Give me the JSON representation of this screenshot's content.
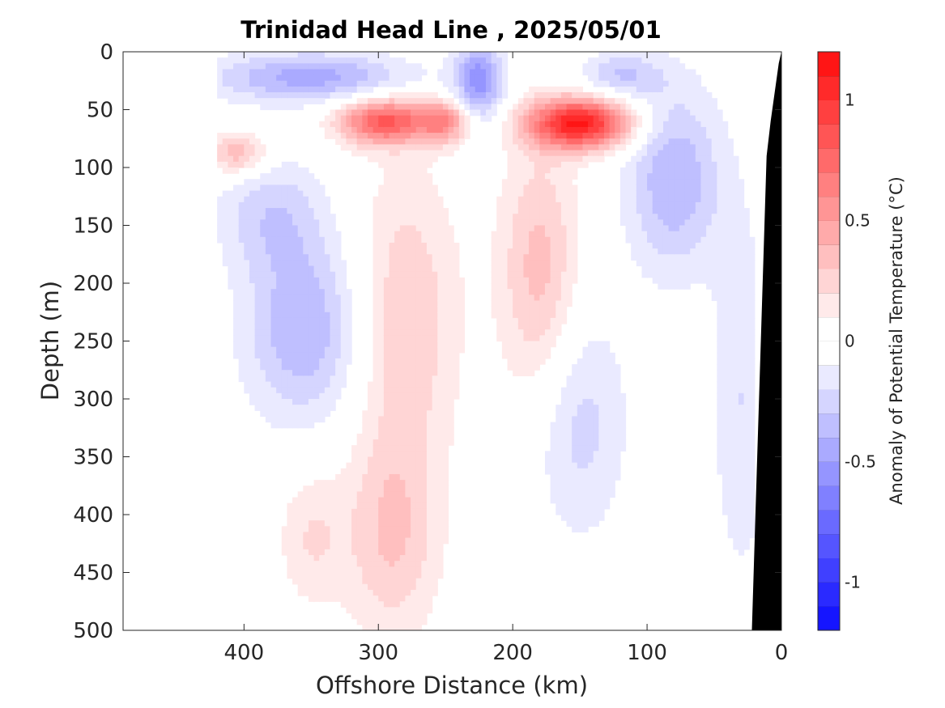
{
  "chart_data": {
    "type": "heatmap",
    "title": "Trinidad Head Line , 2025/05/01",
    "xlabel": "Offshore Distance (km)",
    "ylabel": "Depth (m)",
    "xlim": [
      490,
      0
    ],
    "ylim": [
      0,
      500
    ],
    "x_ticks": [
      "400",
      "300",
      "200",
      "100",
      "0"
    ],
    "y_ticks": [
      "0",
      "50",
      "100",
      "150",
      "200",
      "250",
      "300",
      "350",
      "400",
      "450",
      "500"
    ],
    "colorbar": {
      "label": "Anomaly of Potential Temperature (°C)",
      "range": [
        -1.2,
        1.2
      ],
      "step": 0.1,
      "ticks": [
        "1",
        "0.5",
        "0",
        "-0.5",
        "-1"
      ],
      "neg_color": "#0000ff",
      "pos_color": "#ff0000"
    },
    "data_extent_km": [
      420,
      20
    ],
    "grid": false,
    "bathymetry_color": "#000000",
    "anomaly_features": [
      {
        "center_km": 150,
        "center_depth_m": 62,
        "value": 1.1,
        "r_km": 38,
        "r_depth_m": 22
      },
      {
        "center_km": 295,
        "center_depth_m": 60,
        "value": 0.8,
        "r_km": 35,
        "r_depth_m": 20
      },
      {
        "center_km": 250,
        "center_depth_m": 60,
        "value": 0.5,
        "r_km": 18,
        "r_depth_m": 18
      },
      {
        "center_km": 280,
        "center_depth_m": 230,
        "value": 0.3,
        "r_km": 40,
        "r_depth_m": 130
      },
      {
        "center_km": 180,
        "center_depth_m": 190,
        "value": 0.35,
        "r_km": 30,
        "r_depth_m": 110
      },
      {
        "center_km": 290,
        "center_depth_m": 420,
        "value": 0.3,
        "r_km": 35,
        "r_depth_m": 90
      },
      {
        "center_km": 405,
        "center_depth_m": 88,
        "value": 0.4,
        "r_km": 22,
        "r_depth_m": 18
      },
      {
        "center_km": 350,
        "center_depth_m": 22,
        "value": -0.45,
        "r_km": 75,
        "r_depth_m": 22
      },
      {
        "center_km": 225,
        "center_depth_m": 25,
        "value": -0.55,
        "r_km": 18,
        "r_depth_m": 35
      },
      {
        "center_km": 355,
        "center_depth_m": 240,
        "value": -0.4,
        "r_km": 45,
        "r_depth_m": 80
      },
      {
        "center_km": 80,
        "center_depth_m": 110,
        "value": -0.4,
        "r_km": 35,
        "r_depth_m": 80
      },
      {
        "center_km": 150,
        "center_depth_m": 320,
        "value": -0.25,
        "r_km": 35,
        "r_depth_m": 100
      },
      {
        "center_km": 30,
        "center_depth_m": 300,
        "value": -0.2,
        "r_km": 22,
        "r_depth_m": 160
      },
      {
        "center_km": 120,
        "center_depth_m": 20,
        "value": -0.3,
        "r_km": 30,
        "r_depth_m": 20
      },
      {
        "center_km": 350,
        "center_depth_m": 420,
        "value": 0.2,
        "r_km": 25,
        "r_depth_m": 60
      },
      {
        "center_km": 380,
        "center_depth_m": 140,
        "value": -0.25,
        "r_km": 40,
        "r_depth_m": 50
      }
    ]
  }
}
